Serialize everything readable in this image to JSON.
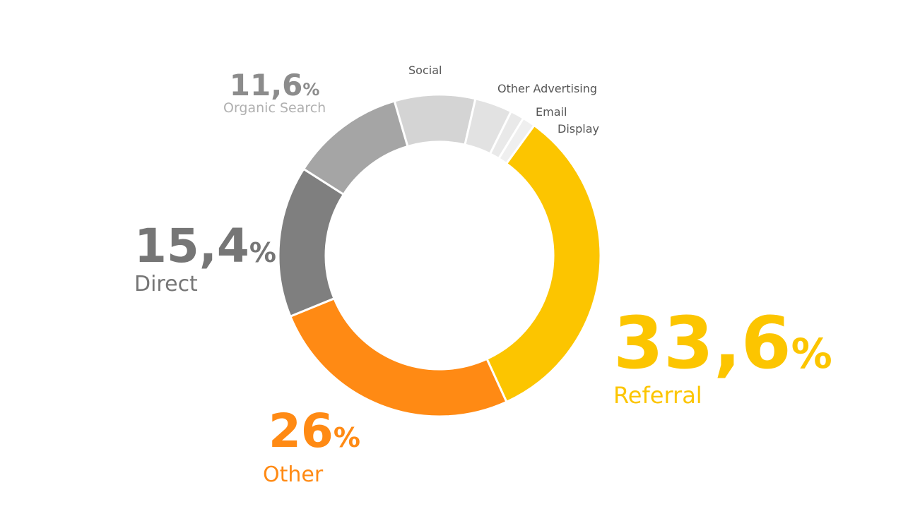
{
  "chart_data": {
    "type": "pie",
    "variant": "donut",
    "title": "",
    "categories": [
      "Referral",
      "Other",
      "Direct",
      "Organic Search",
      "Social",
      "Other Advertising",
      "Email",
      "Display"
    ],
    "values": [
      33.6,
      26,
      15.4,
      11.6,
      8.2,
      3.8,
      1.4,
      1.3
    ],
    "value_labels": [
      "33,6",
      "26",
      "15,4",
      "11,6",
      "",
      "",
      "",
      ""
    ],
    "percent_sign": "%",
    "colors": [
      "#FCC500",
      "#FF8A14",
      "#7F7F7F",
      "#A5A5A5",
      "#D4D4D4",
      "#E2E2E2",
      "#E9E9E9",
      "#EFEFEF"
    ],
    "label_colors": [
      "#FCC500",
      "#FF8A14",
      "#767676",
      "#8C8C8C",
      "#555555",
      "#555555",
      "#555555",
      "#555555"
    ],
    "name_colors": [
      "#FCC500",
      "#FF8A14",
      "#767676",
      "#B0B0B0",
      "#555555",
      "#555555",
      "#555555",
      "#555555"
    ],
    "legend": "none"
  }
}
